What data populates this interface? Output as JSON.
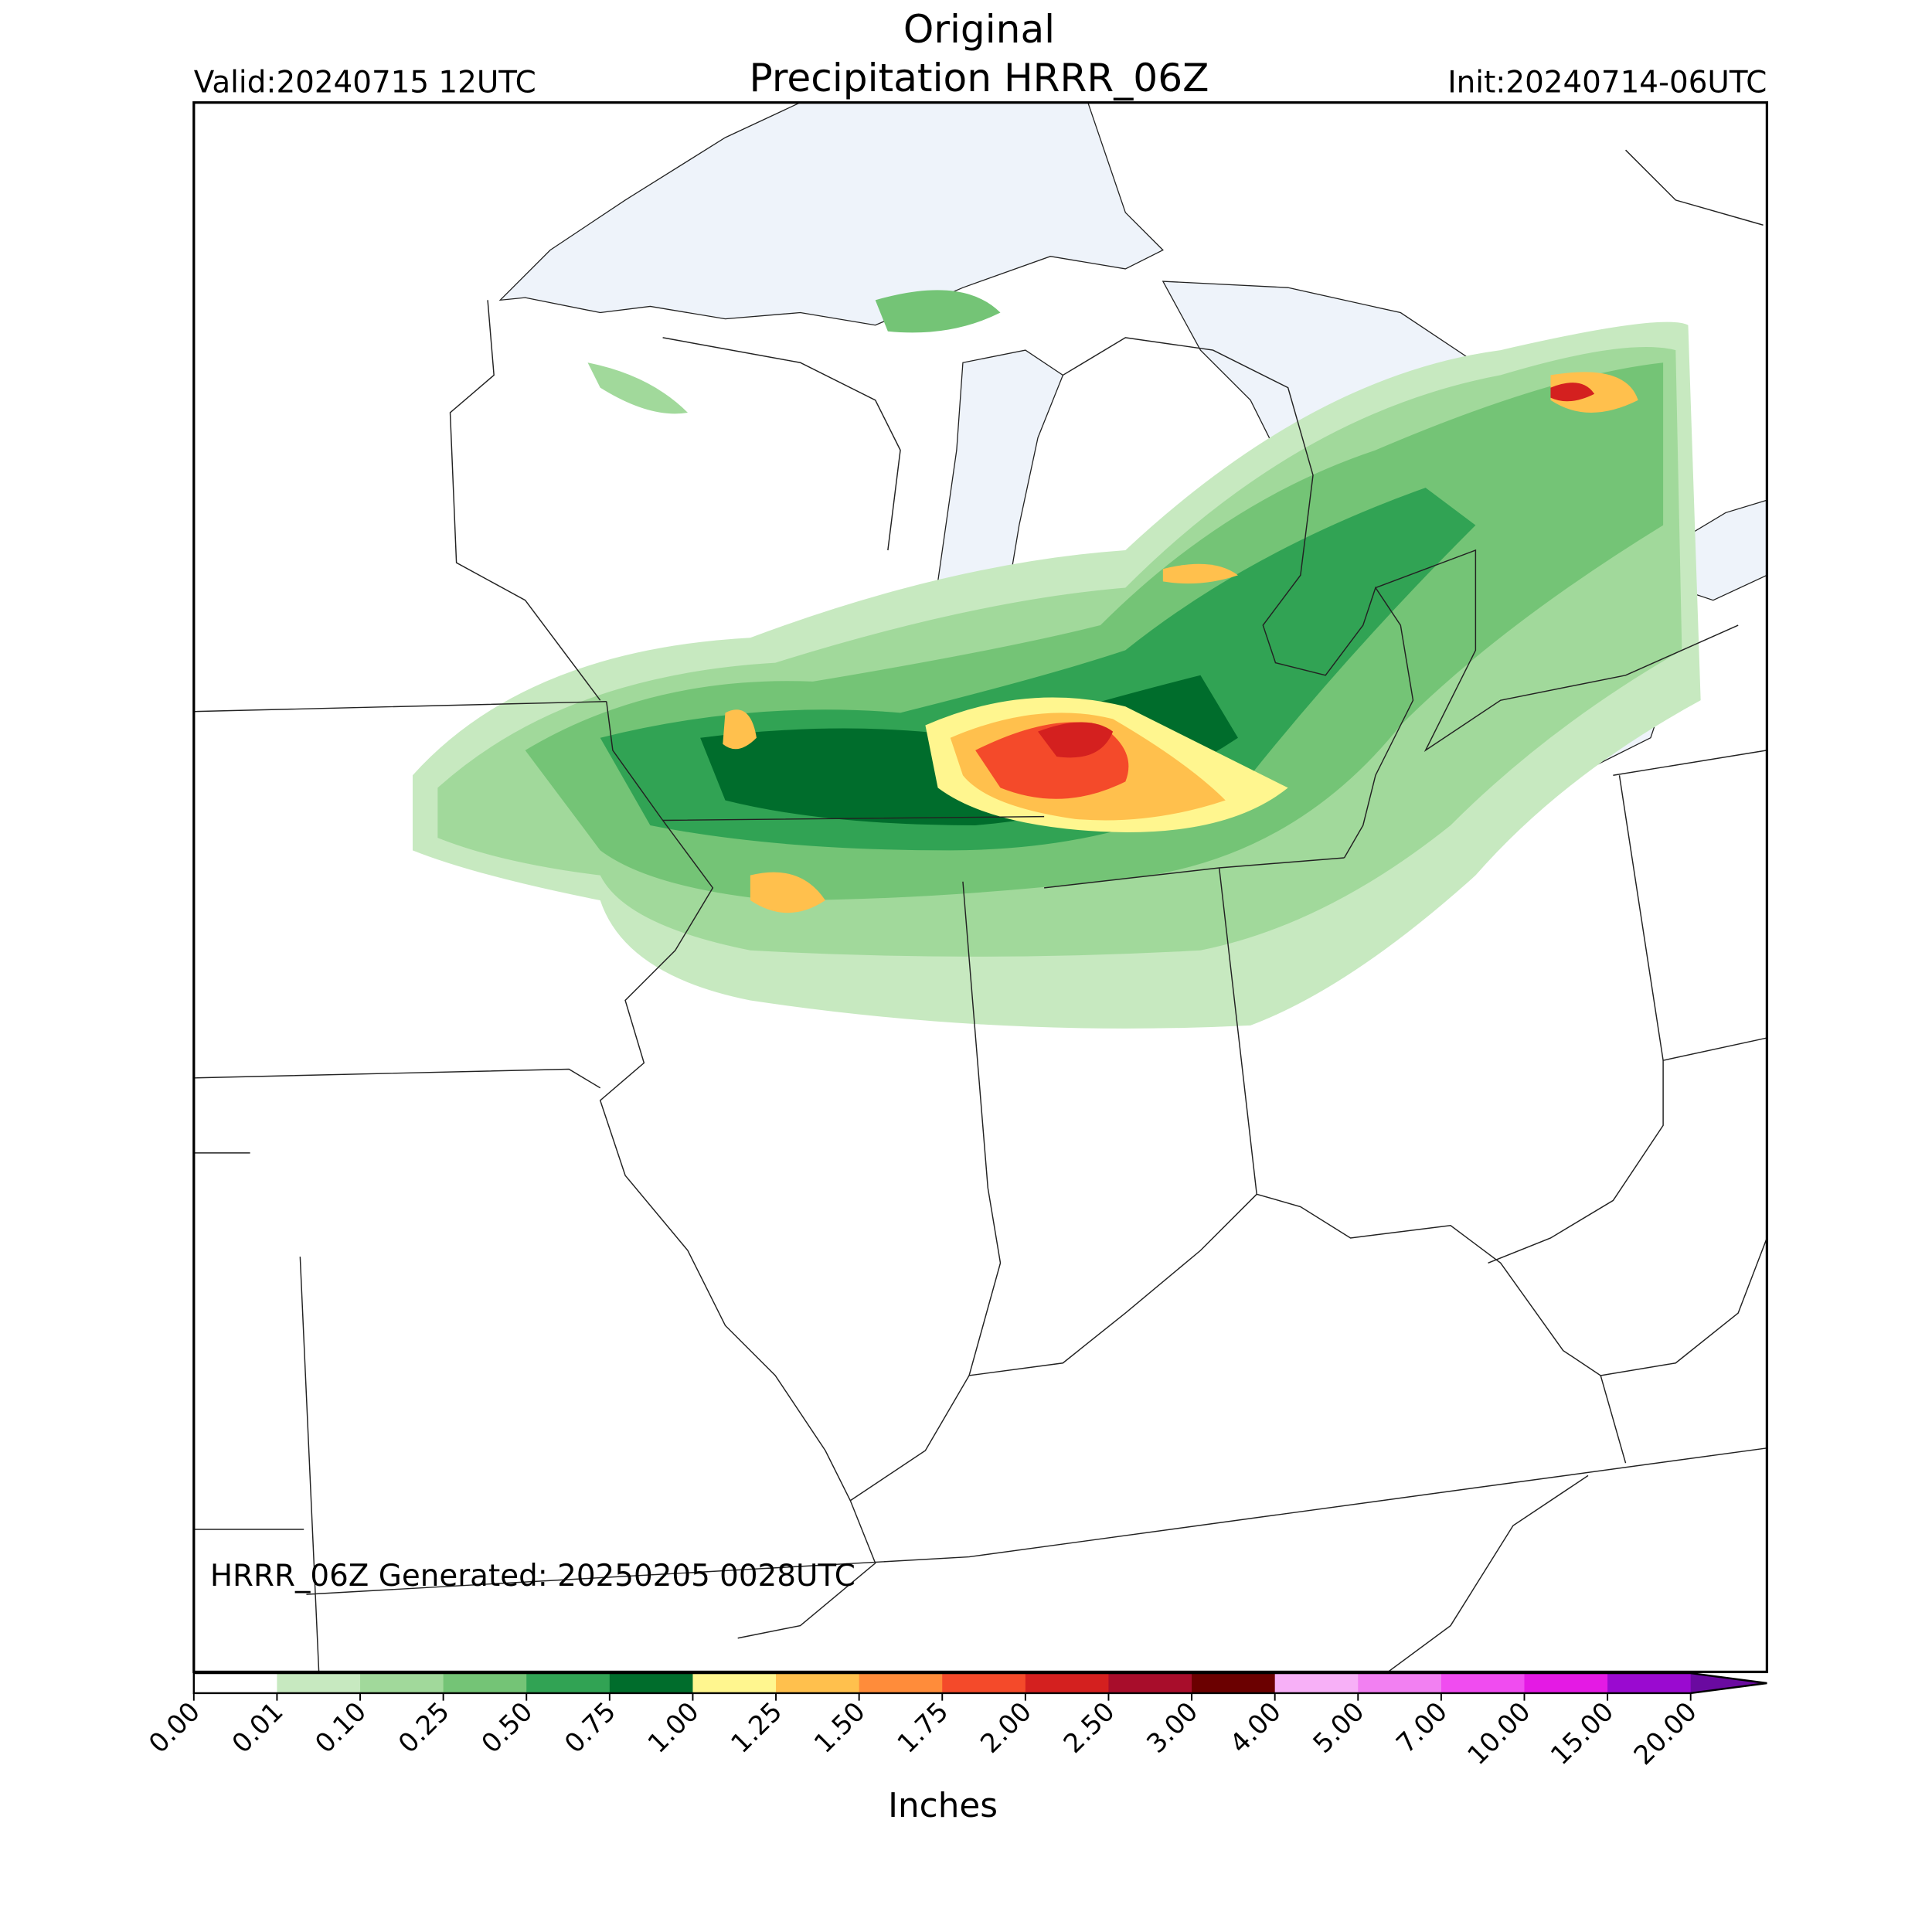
{
  "header": {
    "title": "Original",
    "subtitle": "Precipitation HRRR_06Z",
    "valid": "Valid:20240715 12UTC",
    "init": "Init:20240714-06UTC"
  },
  "map": {
    "generated": "HRRR_06Z Generated: 20250205 0028UTC"
  },
  "colorbar": {
    "label": "Inches",
    "levels": [
      {
        "value": 0,
        "label": "0.00"
      },
      {
        "value": 0.01,
        "label": "0.01"
      },
      {
        "value": 0.1,
        "label": "0.10"
      },
      {
        "value": 0.25,
        "label": "0.25"
      },
      {
        "value": 0.5,
        "label": "0.50"
      },
      {
        "value": 0.75,
        "label": "0.75"
      },
      {
        "value": 1,
        "label": "1.00"
      },
      {
        "value": 1.25,
        "label": "1.25"
      },
      {
        "value": 1.5,
        "label": "1.50"
      },
      {
        "value": 1.75,
        "label": "1.75"
      },
      {
        "value": 2,
        "label": "2.00"
      },
      {
        "value": 2.5,
        "label": "2.50"
      },
      {
        "value": 3,
        "label": "3.00"
      },
      {
        "value": 4,
        "label": "4.00"
      },
      {
        "value": 5,
        "label": "5.00"
      },
      {
        "value": 7,
        "label": "7.00"
      },
      {
        "value": 10,
        "label": "10.00"
      },
      {
        "value": 15,
        "label": "15.00"
      },
      {
        "value": 20,
        "label": "20.00"
      }
    ],
    "colors": [
      "#ffffff",
      "#c7e9c0",
      "#a1d99b",
      "#74c476",
      "#31a354",
      "#006d2c",
      "#fff68f",
      "#ffc04d",
      "#ff8c3a",
      "#f44a2a",
      "#d4201f",
      "#a80d2b",
      "#6b0000",
      "#f7b0f7",
      "#f280f2",
      "#f04cf0",
      "#e41ae4",
      "#9a0ad0"
    ],
    "extend_color": "#6a0aa0"
  }
}
